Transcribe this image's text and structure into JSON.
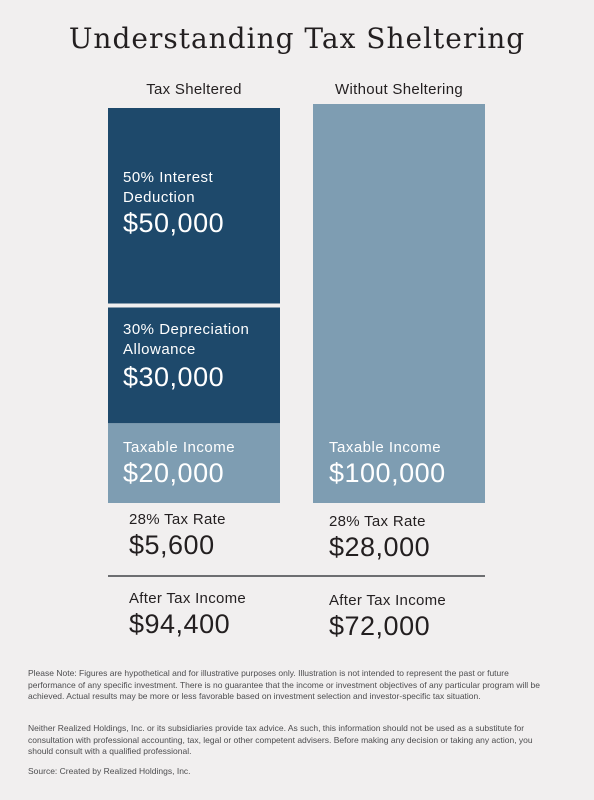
{
  "title": "Understanding Tax Sheltering",
  "chart_data": {
    "type": "bar",
    "stacked": true,
    "categories": [
      "Tax Sheltered",
      "Without Sheltering"
    ],
    "series": [
      {
        "name": "Taxable Income",
        "values": [
          20000,
          100000
        ],
        "color": "#7e9db2"
      },
      {
        "name": "30% Depreciation Allowance",
        "values": [
          30000,
          0
        ],
        "color": "#1e496b"
      },
      {
        "name": "50% Interest Deduction",
        "values": [
          50000,
          0
        ],
        "color": "#1e496b"
      }
    ],
    "ylim": [
      0,
      100000
    ],
    "grid": false
  },
  "columns": [
    {
      "header": "Tax Sheltered",
      "segments": [
        {
          "label_line1": "50% Interest",
          "label_line2": "Deduction",
          "value": "$50,000"
        },
        {
          "label_line1": "30% Depreciation",
          "label_line2": "Allowance",
          "value": "$30,000"
        },
        {
          "label_line1": "Taxable Income",
          "label_line2": "",
          "value": "$20,000"
        }
      ],
      "tax_label": "28% Tax Rate",
      "tax_value": "$5,600",
      "after_label": "After Tax Income",
      "after_value": "$94,400"
    },
    {
      "header": "Without Sheltering",
      "segments": [
        {
          "label_line1": "Taxable Income",
          "label_line2": "",
          "value": "$100,000"
        }
      ],
      "tax_label": "28% Tax Rate",
      "tax_value": "$28,000",
      "after_label": "After Tax Income",
      "after_value": "$72,000"
    }
  ],
  "footnotes": {
    "note1": "Please Note: Figures are hypothetical and for illustrative purposes only. Illustration is not intended to represent the past or future performance of any specific investment. There is no guarantee that the income or investment objectives of any particular program will be achieved.  Actual results may be more or less favorable based on investment selection and investor-specific tax situation.",
    "note2": "Neither Realized Holdings, Inc. or its subsidiaries provide tax advice. As such, this information should not be used as a substitute for consultation with professional accounting, tax, legal or other competent advisers. Before making any decision or taking any action, you should consult with a qualified professional.",
    "source": "Source: Created by Realized Holdings, Inc."
  }
}
